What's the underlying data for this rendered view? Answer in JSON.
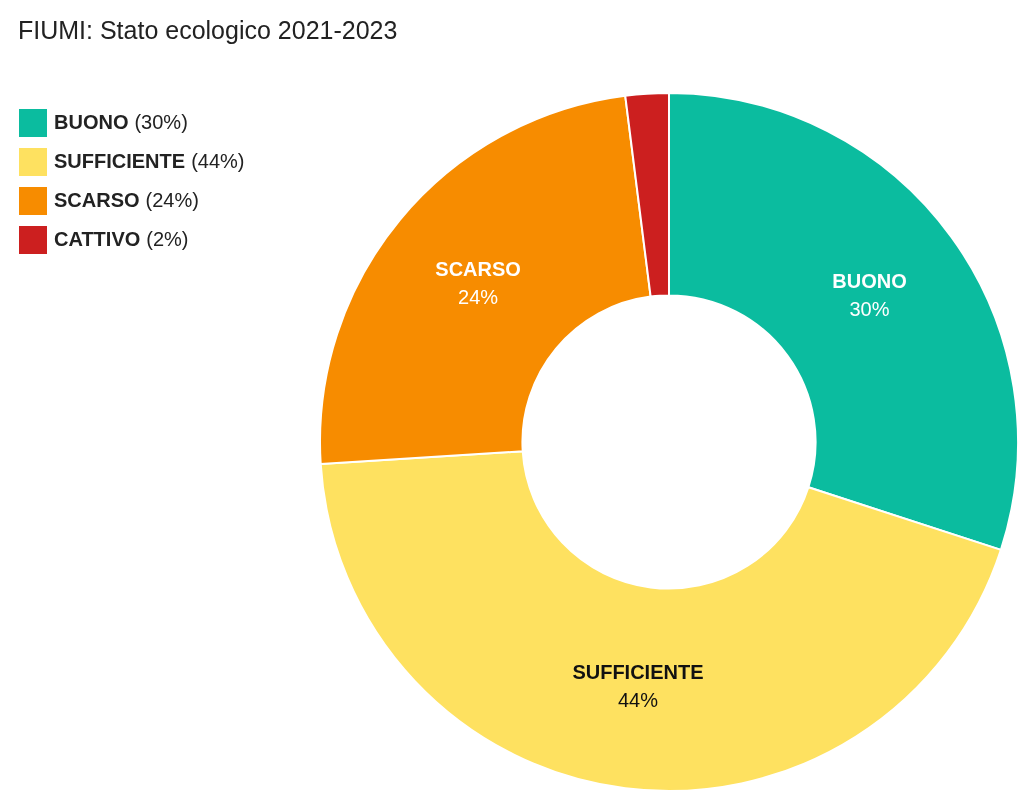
{
  "chart_data": {
    "type": "donut",
    "title": "FIUMI: Stato ecologico 2021-2023",
    "categories": [
      "BUONO",
      "SUFFICIENTE",
      "SCARSO",
      "CATTIVO"
    ],
    "values": [
      30,
      44,
      24,
      2
    ],
    "colors": [
      "#0bbc9f",
      "#fee160",
      "#f78c00",
      "#cc1f1f"
    ],
    "value_labels": [
      "30%",
      "44%",
      "24%",
      null
    ],
    "annotations": [
      "(30%)",
      "(44%)",
      "(24%)",
      "(2%)"
    ],
    "legend": "top left"
  }
}
